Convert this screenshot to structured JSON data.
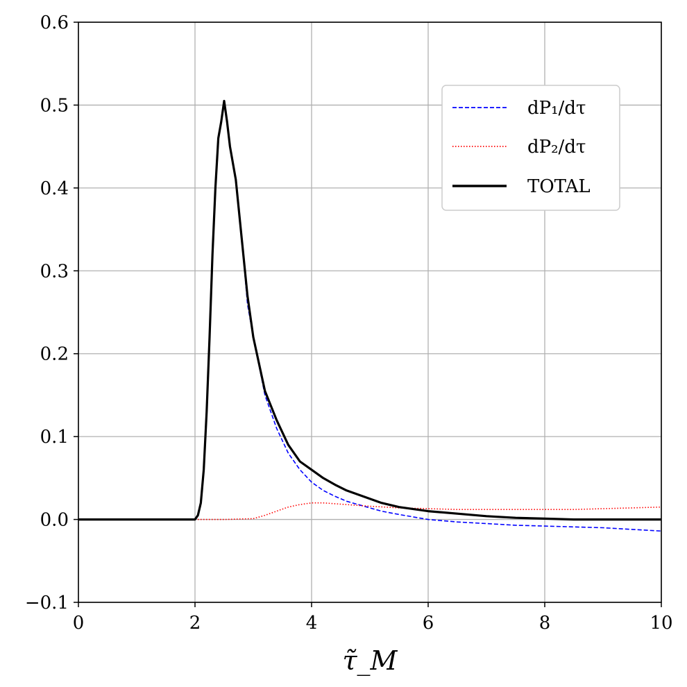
{
  "chart_data": {
    "type": "line",
    "xlabel": "τ̃_M",
    "xlim": [
      0,
      10
    ],
    "ylim": [
      -0.1,
      0.6
    ],
    "x_ticks": [
      "0",
      "2",
      "4",
      "6",
      "8",
      "10"
    ],
    "y_ticks": [
      "−0.1",
      "0.0",
      "0.1",
      "0.2",
      "0.3",
      "0.4",
      "0.5",
      "0.6"
    ],
    "grid": true,
    "legend_position": "upper-right",
    "series": [
      {
        "name": "dP₁/dτ",
        "color": "#0000ff",
        "style": "dashed",
        "x": [
          0,
          2.0,
          2.05,
          2.1,
          2.15,
          2.2,
          2.25,
          2.3,
          2.35,
          2.4,
          2.45,
          2.5,
          2.55,
          2.6,
          2.7,
          2.8,
          2.9,
          3.0,
          3.2,
          3.4,
          3.6,
          3.8,
          4.0,
          4.2,
          4.4,
          4.6,
          4.8,
          5.0,
          5.2,
          5.5,
          6.0,
          6.5,
          7.0,
          7.5,
          8.0,
          8.5,
          9.0,
          9.5,
          10.0
        ],
        "y": [
          0,
          0,
          0.005,
          0.02,
          0.06,
          0.13,
          0.22,
          0.32,
          0.4,
          0.46,
          0.48,
          0.505,
          0.48,
          0.45,
          0.41,
          0.34,
          0.26,
          0.22,
          0.15,
          0.11,
          0.08,
          0.06,
          0.045,
          0.035,
          0.028,
          0.022,
          0.018,
          0.014,
          0.01,
          0.006,
          0.0,
          -0.003,
          -0.005,
          -0.007,
          -0.008,
          -0.009,
          -0.01,
          -0.012,
          -0.014
        ]
      },
      {
        "name": "dP₂/dτ",
        "color": "#ff0000",
        "style": "dotted",
        "x": [
          0,
          2.0,
          2.5,
          3.0,
          3.2,
          3.4,
          3.6,
          3.8,
          4.0,
          4.2,
          4.4,
          4.6,
          4.8,
          5.0,
          5.5,
          6.0,
          6.5,
          7.0,
          7.5,
          8.0,
          8.5,
          9.0,
          9.5,
          10.0
        ],
        "y": [
          0,
          0,
          0,
          0.001,
          0.005,
          0.01,
          0.015,
          0.018,
          0.02,
          0.02,
          0.019,
          0.018,
          0.017,
          0.016,
          0.014,
          0.013,
          0.012,
          0.012,
          0.012,
          0.012,
          0.012,
          0.013,
          0.014,
          0.015
        ]
      },
      {
        "name": "TOTAL",
        "color": "#000000",
        "style": "solid",
        "x": [
          0,
          2.0,
          2.05,
          2.1,
          2.15,
          2.2,
          2.25,
          2.3,
          2.35,
          2.4,
          2.45,
          2.5,
          2.55,
          2.6,
          2.7,
          2.8,
          2.9,
          3.0,
          3.2,
          3.4,
          3.6,
          3.8,
          4.0,
          4.2,
          4.4,
          4.6,
          4.8,
          5.0,
          5.2,
          5.5,
          6.0,
          6.5,
          7.0,
          7.5,
          8.0,
          8.5,
          9.0,
          9.5,
          10.0
        ],
        "y": [
          0,
          0,
          0.005,
          0.02,
          0.06,
          0.13,
          0.22,
          0.32,
          0.4,
          0.46,
          0.48,
          0.505,
          0.48,
          0.45,
          0.41,
          0.34,
          0.27,
          0.22,
          0.155,
          0.12,
          0.09,
          0.07,
          0.06,
          0.05,
          0.042,
          0.035,
          0.03,
          0.025,
          0.02,
          0.015,
          0.01,
          0.007,
          0.004,
          0.002,
          0.001,
          0.0,
          0.0,
          0.0,
          0.0
        ]
      }
    ]
  }
}
